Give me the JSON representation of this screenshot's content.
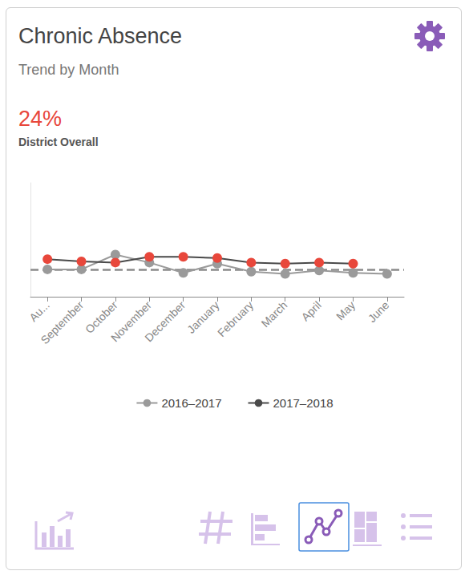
{
  "chart_data": {
    "type": "line",
    "title": "Chronic Absence",
    "subtitle": "Trend by Month",
    "district_overall": {
      "value": 24,
      "label": "24%",
      "text": "District Overall"
    },
    "categories": [
      "Au...",
      "September",
      "October",
      "November",
      "December",
      "January",
      "February",
      "March",
      "April",
      "May",
      "June"
    ],
    "series": [
      {
        "name": "2016–2017",
        "color": "#9a9a9a",
        "marker": "circle",
        "values": [
          24,
          24,
          37,
          30,
          21,
          29,
          22,
          20,
          23,
          21,
          20
        ]
      },
      {
        "name": "2017–2018",
        "color": "#4a4a4a",
        "marker": "circle",
        "colors": [
          "#e8473b",
          "#e8473b",
          "#e8473b",
          "#e8473b",
          "#e8473b",
          "#e8473b",
          "#e8473b",
          "#e8473b",
          "#e8473b",
          "#e8473b",
          "#e8473b"
        ],
        "values": [
          33,
          31,
          30,
          35,
          35,
          34,
          30,
          29,
          30,
          29,
          null
        ]
      }
    ],
    "ylim": [
      0,
      100
    ],
    "grid": false,
    "legend": "bottom",
    "tick_labels": "x"
  }
}
